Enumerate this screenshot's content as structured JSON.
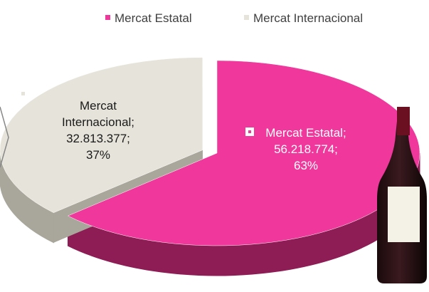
{
  "chart_data": {
    "type": "pie3d",
    "categories": [
      "Mercat Estatal",
      "Mercat Internacional"
    ],
    "values": [
      56218774,
      32813377
    ],
    "value_labels": [
      "56.218.774",
      "32.813.377"
    ],
    "percents": [
      63,
      37
    ],
    "percent_labels": [
      "63%",
      "37%"
    ],
    "label_separator": ";",
    "colors": [
      "#f0379b",
      "#e6e4da"
    ],
    "side_colors": [
      "#8e1c55",
      "#a9a69b"
    ],
    "exploded": [
      false,
      true
    ],
    "legend": "top"
  }
}
